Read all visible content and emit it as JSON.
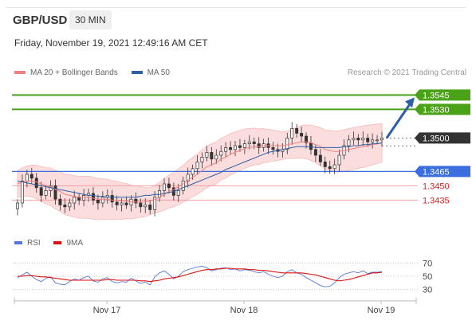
{
  "header": {
    "pair": "GBP/USD",
    "timeframe": "30 MIN",
    "datetime": "Friday, November 19, 2021 12:49:16 AM CET",
    "credit": "Research © 2021 Trading Central"
  },
  "legend": {
    "ma20_label": "MA 20 + Bollinger Bands",
    "ma50_label": "MA 50",
    "rsi_label": "RSI",
    "ma9_label": "9MA",
    "colors": {
      "ma20": "#f08080",
      "ma50": "#2e5fa3",
      "rsi": "#5577dd",
      "ma9": "#dd1111"
    }
  },
  "chart_data": [
    {
      "type": "candlestick",
      "title": "GBP/USD",
      "x_ticks": [
        "Nov 17",
        "Nov 18",
        "Nov 19"
      ],
      "ylim": [
        1.3402,
        1.3562
      ],
      "current_price": 1.35,
      "levels": [
        {
          "value": 1.3545,
          "label": "1.3545",
          "color": "#4aa317",
          "style": "resistance"
        },
        {
          "value": 1.353,
          "label": "1.3530",
          "color": "#4aa317",
          "style": "resistance"
        },
        {
          "value": 1.35,
          "label": "1.3500",
          "color": "#333333",
          "style": "current"
        },
        {
          "value": 1.3465,
          "label": "1.3465",
          "color": "#3b6fe0",
          "style": "pivot"
        },
        {
          "value": 1.345,
          "label": "1.3450",
          "color": "#dd2222",
          "style": "support"
        },
        {
          "value": 1.3435,
          "label": "1.3435",
          "color": "#dd2222",
          "style": "support"
        }
      ],
      "close_series": [
        1.3432,
        1.3455,
        1.3462,
        1.3458,
        1.3448,
        1.344,
        1.3445,
        1.345,
        1.3436,
        1.343,
        1.3428,
        1.3432,
        1.3438,
        1.3435,
        1.344,
        1.3442,
        1.3435,
        1.3432,
        1.3438,
        1.344,
        1.3433,
        1.343,
        1.3432,
        1.343,
        1.3436,
        1.3432,
        1.3428,
        1.343,
        1.3425,
        1.3438,
        1.3445,
        1.3452,
        1.3448,
        1.344,
        1.3445,
        1.3455,
        1.3462,
        1.3468,
        1.3475,
        1.348,
        1.3485,
        1.3478,
        1.3482,
        1.3486,
        1.349,
        1.3488,
        1.3492,
        1.349,
        1.3494,
        1.3496,
        1.3494,
        1.349,
        1.3494,
        1.349,
        1.3488,
        1.3486,
        1.3488,
        1.35,
        1.351,
        1.3505,
        1.3502,
        1.3495,
        1.3488,
        1.3482,
        1.3475,
        1.347,
        1.3468,
        1.3472,
        1.3482,
        1.3492,
        1.3498,
        1.35,
        1.3498,
        1.35,
        1.3496,
        1.3498,
        1.3498,
        1.35
      ],
      "ma20": [
        1.3452,
        1.3454,
        1.3455,
        1.3455,
        1.3454,
        1.3452,
        1.345,
        1.3449,
        1.3446,
        1.3444,
        1.3441,
        1.344,
        1.3439,
        1.3438,
        1.3438,
        1.3438,
        1.3437,
        1.3436,
        1.3436,
        1.3436,
        1.3435,
        1.3435,
        1.3434,
        1.3434,
        1.3433,
        1.3433,
        1.3433,
        1.3433,
        1.3434,
        1.3436,
        1.3438,
        1.3441,
        1.3444,
        1.3446,
        1.3449,
        1.3452,
        1.3456,
        1.3459,
        1.3462,
        1.3466,
        1.347,
        1.3472,
        1.3474,
        1.3478,
        1.348,
        1.3483,
        1.3485,
        1.3487,
        1.3489,
        1.349,
        1.3491,
        1.3491,
        1.3492,
        1.3492,
        1.3492,
        1.3492,
        1.3492,
        1.3493,
        1.3494,
        1.3495,
        1.3496,
        1.3496,
        1.3495,
        1.3493,
        1.3491,
        1.3488,
        1.3487,
        1.3486,
        1.3486,
        1.3487,
        1.3488,
        1.3489,
        1.349,
        1.3491,
        1.3492,
        1.3493,
        1.3494,
        1.3495
      ],
      "ma50": [
        1.3455,
        1.3454,
        1.3453,
        1.3452,
        1.3451,
        1.345,
        1.3449,
        1.3448,
        1.3447,
        1.3446,
        1.3445,
        1.3444,
        1.3443,
        1.3442,
        1.3441,
        1.344,
        1.344,
        1.3439,
        1.3439,
        1.3438,
        1.3438,
        1.3438,
        1.3438,
        1.3438,
        1.3438,
        1.3438,
        1.3439,
        1.344,
        1.344,
        1.3441,
        1.3441,
        1.3442,
        1.3443,
        1.3444,
        1.3446,
        1.3448,
        1.345,
        1.3452,
        1.3454,
        1.3456,
        1.3458,
        1.346,
        1.3462,
        1.3464,
        1.3467,
        1.3469,
        1.3471,
        1.3473,
        1.3475,
        1.3477,
        1.3479,
        1.3481,
        1.3483,
        1.3485,
        1.3486,
        1.3487,
        1.3488,
        1.3489,
        1.349,
        1.3491,
        1.3491,
        1.3491,
        1.3491,
        1.349,
        1.349,
        1.349,
        1.349,
        1.349,
        1.349,
        1.3491,
        1.3491,
        1.3492,
        1.3492,
        1.3493,
        1.3493,
        1.3494,
        1.3494,
        1.3495
      ]
    },
    {
      "type": "line",
      "title": "RSI",
      "y_ticks": [
        70,
        50,
        30
      ],
      "ylim": [
        20,
        80
      ],
      "series": [
        {
          "name": "RSI",
          "values": [
            48,
            52,
            56,
            50,
            45,
            42,
            47,
            49,
            40,
            38,
            37,
            42,
            46,
            44,
            48,
            50,
            43,
            41,
            46,
            48,
            42,
            40,
            42,
            41,
            47,
            43,
            39,
            41,
            37,
            49,
            55,
            58,
            53,
            46,
            50,
            57,
            60,
            62,
            64,
            65,
            63,
            58,
            60,
            62,
            63,
            60,
            61,
            58,
            60,
            59,
            57,
            55,
            57,
            53,
            50,
            48,
            50,
            57,
            60,
            55,
            53,
            48,
            44,
            40,
            36,
            34,
            35,
            40,
            48,
            53,
            55,
            57,
            55,
            58,
            54,
            56,
            56,
            57
          ]
        },
        {
          "name": "9MA",
          "values": [
            50,
            50,
            51,
            51,
            50,
            49,
            49,
            48,
            47,
            46,
            45,
            44,
            44,
            44,
            44,
            44,
            44,
            44,
            44,
            45,
            45,
            44,
            44,
            44,
            44,
            44,
            43,
            43,
            42,
            43,
            44,
            46,
            47,
            48,
            49,
            51,
            53,
            55,
            57,
            59,
            60,
            60,
            61,
            61,
            62,
            62,
            61,
            61,
            61,
            60,
            60,
            59,
            59,
            58,
            57,
            56,
            55,
            55,
            55,
            55,
            55,
            54,
            53,
            52,
            50,
            48,
            46,
            44,
            43,
            44,
            45,
            47,
            49,
            51,
            53,
            55,
            55,
            56
          ]
        }
      ]
    }
  ]
}
